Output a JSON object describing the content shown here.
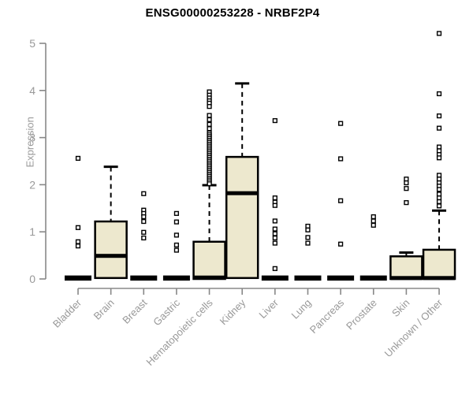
{
  "chart_data": {
    "type": "boxplot",
    "title": "ENSG00000253228 - NRBF2P4",
    "ylabel": "Expression",
    "xlabel": "",
    "ylim": [
      0,
      5
    ],
    "yticks": [
      0,
      1,
      2,
      3,
      4,
      5
    ],
    "grid": false,
    "legend": "none",
    "categories": [
      "Bladder",
      "Brain",
      "Breast",
      "Gastric",
      "Hematopoietic cells",
      "Kidney",
      "Liver",
      "Lung",
      "Pancreas",
      "Prostate",
      "Skin",
      "Unknown / Other"
    ],
    "boxes": [
      {
        "category": "Bladder",
        "q1": 0,
        "median": 0.02,
        "q3": 0.03,
        "whisker_low": 0,
        "whisker_high": 0.03,
        "outliers": [
          2.56,
          1.09,
          0.79,
          0.7
        ]
      },
      {
        "category": "Brain",
        "q1": 0.02,
        "median": 0.49,
        "q3": 1.22,
        "whisker_low": 0,
        "whisker_high": 2.38,
        "outliers": []
      },
      {
        "category": "Breast",
        "q1": 0,
        "median": 0.02,
        "q3": 0.03,
        "whisker_low": 0,
        "whisker_high": 0.03,
        "outliers": [
          1.81,
          1.46,
          1.39,
          1.32,
          1.22,
          0.99,
          0.87
        ]
      },
      {
        "category": "Gastric",
        "q1": 0,
        "median": 0.02,
        "q3": 0.03,
        "whisker_low": 0,
        "whisker_high": 0.03,
        "outliers": [
          1.39,
          1.21,
          0.93,
          0.72,
          0.61
        ]
      },
      {
        "category": "Hematopoietic cells",
        "q1": 0,
        "median": 0.03,
        "q3": 0.79,
        "whisker_low": 0,
        "whisker_high": 1.99,
        "outliers": [
          3.97,
          3.9,
          3.84,
          3.78,
          3.73,
          3.66,
          3.47,
          3.38,
          3.28,
          3.19,
          3.1,
          3.06,
          3.02,
          2.98,
          2.94,
          2.9,
          2.86,
          2.82,
          2.78,
          2.74,
          2.7,
          2.66,
          2.62,
          2.58,
          2.54,
          2.5,
          2.46,
          2.42,
          2.38,
          2.34,
          2.3,
          2.26,
          2.22,
          2.18,
          2.14,
          2.1,
          2.06,
          2.02
        ]
      },
      {
        "category": "Kidney",
        "q1": 0.02,
        "median": 1.82,
        "q3": 2.59,
        "whisker_low": 0,
        "whisker_high": 4.15,
        "outliers": []
      },
      {
        "category": "Liver",
        "q1": 0,
        "median": 0.02,
        "q3": 0.03,
        "whisker_low": 0,
        "whisker_high": 0.03,
        "outliers": [
          3.36,
          1.72,
          1.63,
          1.56,
          1.23,
          1.06,
          0.96,
          0.87,
          0.76,
          0.22
        ]
      },
      {
        "category": "Lung",
        "q1": 0,
        "median": 0.02,
        "q3": 0.03,
        "whisker_low": 0,
        "whisker_high": 0.03,
        "outliers": [
          1.12,
          1.04,
          0.88,
          0.76
        ]
      },
      {
        "category": "Pancreas",
        "q1": 0,
        "median": 0.02,
        "q3": 0.03,
        "whisker_low": 0,
        "whisker_high": 0.03,
        "outliers": [
          3.3,
          2.55,
          1.66,
          0.74
        ]
      },
      {
        "category": "Prostate",
        "q1": 0,
        "median": 0.02,
        "q3": 0.03,
        "whisker_low": 0,
        "whisker_high": 0.03,
        "outliers": [
          1.32,
          1.23,
          1.14
        ]
      },
      {
        "category": "Skin",
        "q1": 0,
        "median": 0.02,
        "q3": 0.48,
        "whisker_low": 0,
        "whisker_high": 0.56,
        "outliers": [
          2.12,
          2.04,
          1.92,
          1.62
        ]
      },
      {
        "category": "Unknown / Other",
        "q1": 0,
        "median": 0.02,
        "q3": 0.62,
        "whisker_low": 0,
        "whisker_high": 1.45,
        "outliers": [
          5.21,
          3.93,
          3.46,
          3.2,
          2.8,
          2.72,
          2.64,
          2.57,
          2.2,
          2.12,
          2.04,
          1.97,
          1.9,
          1.8,
          1.72,
          1.64,
          1.55
        ]
      }
    ],
    "colors": {
      "box_fill": "#EDE8CE",
      "box_border": "#000000",
      "median": "#000000",
      "whisker": "#000000",
      "outlier_border": "#000000",
      "axis_line": "#888888",
      "tick_text": "#999999",
      "title_text": "#000000"
    }
  }
}
